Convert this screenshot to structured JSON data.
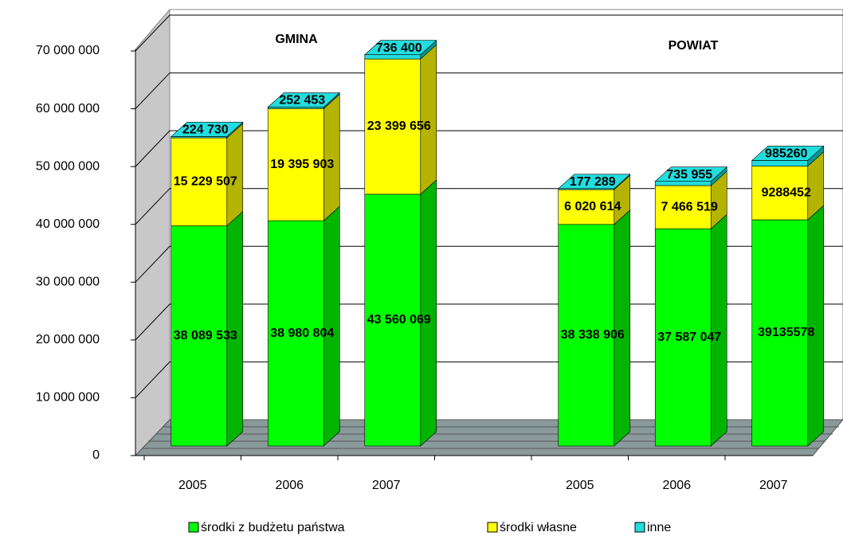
{
  "chart_data": {
    "type": "bar3d_stacked",
    "annotations": [
      {
        "text": "GMINA"
      },
      {
        "text": "POWIAT"
      }
    ],
    "categories": [
      "2005",
      "2006",
      "2007",
      null,
      "2005",
      "2006",
      "2007"
    ],
    "series": [
      {
        "name": "środki z budżetu państwa",
        "color": "#00ff00",
        "side": "#00b400",
        "values": [
          38089533,
          38980804,
          43560069,
          null,
          38338906,
          37587047,
          39135578
        ],
        "value_labels": [
          "38 089 533",
          "38 980 804",
          "43 560 069",
          null,
          "38 338 906",
          "37 587 047",
          "39135578"
        ]
      },
      {
        "name": "środki własne",
        "color": "#ffff00",
        "side": "#b4b400",
        "values": [
          15229507,
          19395903,
          23399656,
          null,
          6020614,
          7466519,
          9288452
        ],
        "value_labels": [
          "15 229 507",
          "19 395 903",
          "23 399 656",
          null,
          "6 020 614",
          "7 466 519",
          "9288452"
        ]
      },
      {
        "name": "inne",
        "color": "#22dddd",
        "side": "#009a9a",
        "values": [
          224730,
          252453,
          736400,
          null,
          177289,
          735955,
          985260
        ],
        "value_labels": [
          "224 730",
          "252 453",
          "736 400",
          null,
          "177 289",
          "735 955",
          "985260"
        ]
      }
    ],
    "ylim": [
      0,
      70000000
    ],
    "yticks": [
      0,
      {
        "value": 10000000,
        "label": "10 000 000"
      },
      {
        "value": 20000000,
        "label": "20 000 000"
      },
      {
        "value": 30000000,
        "label": "30 000 000"
      },
      {
        "value": 40000000,
        "label": "40 000 000"
      },
      {
        "value": 50000000,
        "label": "50 000 000"
      },
      {
        "value": 60000000,
        "label": "60 000 000"
      },
      {
        "value": 70000000,
        "label": "70 000 000"
      }
    ],
    "grid": true
  }
}
